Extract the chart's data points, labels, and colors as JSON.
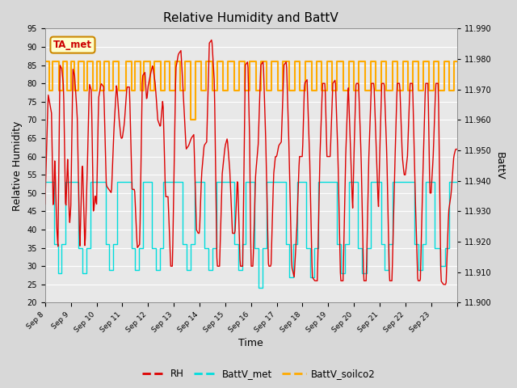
{
  "title": "Relative Humidity and BattV",
  "xlabel": "Time",
  "ylabel_left": "Relative Humidity",
  "ylabel_right": "BattV",
  "ylim_left": [
    20,
    95
  ],
  "ylim_right": [
    11.9,
    11.99
  ],
  "yticks_left": [
    20,
    25,
    30,
    35,
    40,
    45,
    50,
    55,
    60,
    65,
    70,
    75,
    80,
    85,
    90,
    95
  ],
  "yticks_right": [
    11.9,
    11.91,
    11.92,
    11.93,
    11.94,
    11.95,
    11.96,
    11.97,
    11.98,
    11.99
  ],
  "x_labels": [
    "Sep 8",
    "Sep 9",
    "Sep 10",
    "Sep 11",
    "Sep 12",
    "Sep 13",
    "Sep 14",
    "Sep 15",
    "Sep 16",
    "Sep 17",
    "Sep 18",
    "Sep 19",
    "Sep 20",
    "Sep 21",
    "Sep 22",
    "Sep 23"
  ],
  "color_rh": "#dd0000",
  "color_battv_met": "#00dddd",
  "color_battv_soilco2": "#ffaa00",
  "background_color": "#d8d8d8",
  "plot_background": "#e8e8e8",
  "grid_color": "#ffffff",
  "annotation_text": "TA_met",
  "annotation_color": "#cc0000",
  "annotation_border": "#cc8800",
  "annotation_bg": "#ffffcc",
  "legend_dash_color_rh": "#cc0000",
  "legend_dash_color_met": "#00cccc",
  "legend_dash_color_soilco2": "#ffaa00"
}
